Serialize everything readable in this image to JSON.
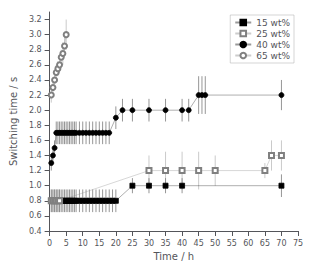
{
  "chart_data": {
    "type": "line",
    "xlabel": "Time / h",
    "ylabel": "Switching time / s",
    "xlim": [
      0,
      75
    ],
    "ylim": [
      0.4,
      3.3
    ],
    "xticks": [
      0,
      5,
      10,
      15,
      20,
      25,
      30,
      35,
      40,
      45,
      50,
      55,
      60,
      65,
      70,
      75
    ],
    "yticks": [
      0.4,
      0.6,
      0.8,
      {
        "value": 1.0,
        "label": "1.0"
      },
      1.2,
      1.4,
      1.6,
      1.8,
      {
        "value": 2.0,
        "label": "2.0"
      },
      2.2,
      2.4,
      2.6,
      2.8,
      {
        "value": 3.0,
        "label": "3.0"
      },
      3.2
    ],
    "grid": false,
    "legend": "upper right",
    "series": [
      {
        "name": "15 wt%",
        "color": "#000000",
        "marker": "square",
        "x": [
          0.5,
          1.0,
          1.5,
          2.0,
          2.5,
          3.0,
          3.5,
          4.0,
          4.5,
          5.0,
          5.5,
          6.0,
          6.5,
          7.0,
          7.5,
          8.0,
          9.0,
          10.0,
          11.0,
          12.0,
          13.0,
          14.0,
          15.0,
          16.0,
          17.0,
          18.0,
          19.0,
          20.0,
          25.0,
          30.0,
          35.0,
          40.0,
          70.0
        ],
        "values": [
          0.8,
          0.8,
          0.8,
          0.8,
          0.8,
          0.8,
          0.8,
          0.8,
          0.8,
          0.8,
          0.8,
          0.8,
          0.8,
          0.8,
          0.8,
          0.8,
          0.8,
          0.8,
          0.8,
          0.8,
          0.8,
          0.8,
          0.8,
          0.8,
          0.8,
          0.8,
          0.8,
          0.8,
          1.0,
          1.0,
          1.0,
          1.0,
          1.0
        ],
        "yerr": [
          0.15,
          0.15,
          0.15,
          0.15,
          0.15,
          0.15,
          0.15,
          0.15,
          0.15,
          0.15,
          0.15,
          0.15,
          0.15,
          0.15,
          0.15,
          0.15,
          0.15,
          0.15,
          0.15,
          0.15,
          0.15,
          0.15,
          0.15,
          0.15,
          0.15,
          0.15,
          0.15,
          0.15,
          0.1,
          0.1,
          0.1,
          0.1,
          0.15
        ]
      },
      {
        "name": "25 wt%",
        "color": "#808080",
        "marker": "square-open",
        "x": [
          0.5,
          1.0,
          1.5,
          2.0,
          2.5,
          3.0,
          30.0,
          35.0,
          40.0,
          45.0,
          50.0,
          65.0,
          67.0,
          70.0
        ],
        "values": [
          0.8,
          0.8,
          0.8,
          0.8,
          0.8,
          0.8,
          1.2,
          1.2,
          1.2,
          1.2,
          1.2,
          1.2,
          1.4,
          1.4
        ],
        "yerr": [
          0.15,
          0.15,
          0.15,
          0.15,
          0.15,
          0.15,
          0.2,
          0.25,
          0.25,
          0.25,
          0.2,
          0.1,
          0.2,
          0.2
        ]
      },
      {
        "name": "40 wt%",
        "color": "#000000",
        "marker": "circle",
        "x": [
          0.5,
          1.0,
          1.5,
          2.0,
          2.5,
          3.0,
          3.5,
          4.0,
          4.5,
          5.0,
          5.5,
          6.0,
          6.5,
          7.0,
          7.5,
          8.0,
          9.0,
          10.0,
          11.0,
          12.0,
          13.0,
          14.0,
          15.0,
          16.0,
          17.0,
          18.0,
          20.0,
          22.0,
          25.0,
          30.0,
          35.0,
          40.0,
          42.0,
          45.0,
          46.0,
          47.0,
          70.0
        ],
        "values": [
          1.3,
          1.4,
          1.5,
          1.7,
          1.7,
          1.7,
          1.7,
          1.7,
          1.7,
          1.7,
          1.7,
          1.7,
          1.7,
          1.7,
          1.7,
          1.7,
          1.7,
          1.7,
          1.7,
          1.7,
          1.7,
          1.7,
          1.7,
          1.7,
          1.7,
          1.7,
          1.9,
          2.0,
          2.0,
          2.0,
          2.0,
          2.0,
          2.0,
          2.2,
          2.2,
          2.2,
          2.2
        ],
        "yerr": [
          0.1,
          0.1,
          0.1,
          0.15,
          0.15,
          0.15,
          0.15,
          0.15,
          0.15,
          0.15,
          0.15,
          0.15,
          0.15,
          0.15,
          0.15,
          0.15,
          0.15,
          0.15,
          0.15,
          0.15,
          0.15,
          0.15,
          0.15,
          0.15,
          0.15,
          0.15,
          0.15,
          0.15,
          0.15,
          0.15,
          0.15,
          0.15,
          0.15,
          0.25,
          0.25,
          0.25,
          0.2
        ]
      },
      {
        "name": "65 wt%",
        "color": "#808080",
        "marker": "circle-open",
        "x": [
          0.5,
          1.0,
          1.5,
          2.0,
          2.5,
          3.0,
          3.5,
          4.0,
          4.5,
          5.0
        ],
        "values": [
          2.2,
          2.3,
          2.4,
          2.5,
          2.55,
          2.6,
          2.7,
          2.75,
          2.85,
          3.0
        ],
        "yerr": [
          0.1,
          0.1,
          0.1,
          0.1,
          0.1,
          0.1,
          0.1,
          0.15,
          0.15,
          0.2
        ]
      }
    ]
  }
}
